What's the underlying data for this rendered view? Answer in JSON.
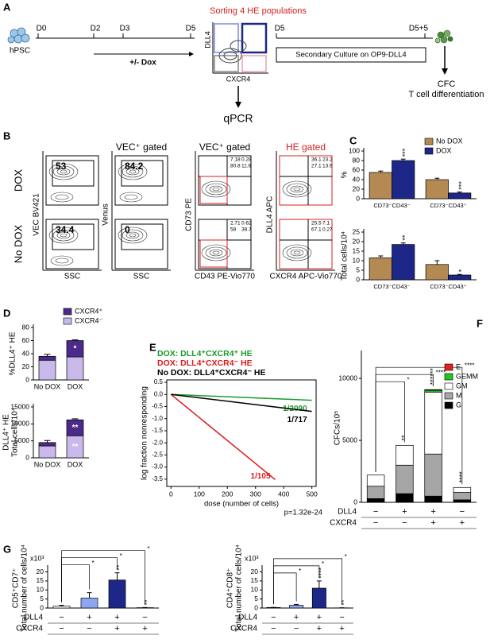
{
  "panel_a": {
    "label": "A",
    "title": "Sorting 4 HE populations",
    "cell": "hPSC",
    "days": [
      "D0",
      "D2",
      "D3",
      "D5"
    ],
    "treatment": "+/- Dox",
    "gate_y": "DLL4",
    "gate_x": "CXCR4",
    "readout": "qPCR",
    "culture_days": [
      "D5",
      "D5+5"
    ],
    "culture": "Secondary Culture on OP9-DLL4",
    "assays": [
      "CFC",
      "T cell differentiation"
    ]
  },
  "panel_b": {
    "label": "B",
    "rows": [
      "DOX",
      "No DOX"
    ],
    "headers": [
      "VEC⁺ gated",
      "VEC⁺ gated",
      "HE gated"
    ],
    "x_labels": [
      "SSC",
      "SSC",
      "CD43 PE-Vio770",
      "CXCR4 APC-Vio770"
    ],
    "y_labels": [
      "VEC BV421",
      "Venus",
      "CD73 PE",
      "DLL4 APC"
    ],
    "gate_values": [
      [
        53,
        84.2
      ],
      [
        34.4,
        0
      ]
    ],
    "quadrants": [
      [
        [
          7.18,
          0.28,
          80.8,
          11.6
        ],
        [
          36.1,
          23.2,
          27.1,
          13.6
        ]
      ],
      [
        [
          2.71,
          0.62,
          58,
          38.7
        ],
        [
          25.5,
          7.1,
          67.1,
          0.27
        ]
      ]
    ]
  },
  "chart_data": [
    {
      "panel": "C",
      "type": "bar",
      "categories": [
        "CD73⁻CD43⁻",
        "CD73⁻CD43⁺"
      ],
      "ylabel": [
        "%"
      ],
      "ylim": [
        0,
        100
      ],
      "yticks": [
        0,
        20,
        40,
        60,
        80,
        100
      ],
      "legend": true,
      "series": [
        {
          "name": "No DOX",
          "color": "#b58a52",
          "values": [
            55,
            40
          ],
          "errors": [
            3,
            3
          ]
        },
        {
          "name": "DOX",
          "color": "#1c2787",
          "values": [
            80,
            12
          ],
          "errors": [
            3,
            2
          ],
          "stars": [
            "***",
            "***"
          ]
        }
      ]
    },
    {
      "type": "bar",
      "categories": [
        "CD73⁻CD43⁻",
        "CD73⁻CD43⁺"
      ],
      "ylabel": [
        "Total cells/10⁴"
      ],
      "ylim": [
        0,
        25
      ],
      "yticks": [
        0,
        5,
        10,
        15,
        20,
        25
      ],
      "series": [
        {
          "color": "#b58a52",
          "values": [
            11.5,
            8
          ],
          "errors": [
            1,
            2
          ]
        },
        {
          "color": "#1c2787",
          "values": [
            18.5,
            2.5
          ],
          "errors": [
            0.8,
            0.3
          ],
          "stars": [
            "**",
            "*"
          ]
        }
      ]
    },
    {
      "panel": "D",
      "type": "stacked_bar",
      "categories": [
        "No DOX",
        "DOX"
      ],
      "ylabel": [
        "%DLL4⁺ HE"
      ],
      "ylim": [
        0,
        80
      ],
      "yticks": [
        0,
        20,
        40,
        60,
        80
      ],
      "legend": true,
      "series": [
        {
          "name": "CXCR4⁻",
          "color": "#c9b8ea",
          "values": [
            30,
            35
          ],
          "errors": [
            4,
            1
          ]
        },
        {
          "name": "CXCR4⁺",
          "color": "#4b2a8c",
          "values": [
            6,
            25
          ],
          "errors": [
            3,
            1
          ],
          "stars": [
            null,
            "*"
          ]
        }
      ]
    },
    {
      "type": "stacked_bar",
      "categories": [
        "No DOX",
        "DOX"
      ],
      "ylabel": [
        "DLL4⁺ HE",
        "Total cells/10⁴"
      ],
      "ylim": [
        0,
        15000
      ],
      "yticks": [
        0,
        5000,
        10000,
        15000
      ],
      "series": [
        {
          "color": "#c9b8ea",
          "values": [
            3500,
            6500
          ],
          "stars": [
            null,
            "**"
          ]
        },
        {
          "color": "#4b2a8c",
          "values": [
            1000,
            4700
          ],
          "errors": [
            600,
            300
          ],
          "stars": [
            null,
            "**"
          ]
        }
      ]
    },
    {
      "panel": "E",
      "type": "line",
      "xlabel": "dose (number of cells)",
      "ylabel": [
        "log fraction nonresponding"
      ],
      "annotation": "p=1.32e-24",
      "xlim": [
        -15,
        515
      ],
      "xticks": [
        0,
        100,
        200,
        300,
        400,
        500
      ],
      "ylim": [
        -3.8,
        0.6
      ],
      "yticks": [
        -3.5,
        {
          "value": -3,
          "label": "-3.0"
        },
        -2.5,
        {
          "value": -2,
          "label": "-2.0"
        },
        -1.5,
        {
          "value": -1,
          "label": "-1.0"
        },
        -0.5,
        {
          "value": 0,
          "label": "0.0"
        },
        0.5
      ],
      "series": [
        {
          "name": "DOX: DLL4⁺CXCR4⁺ HE",
          "color": "#1a9a2a",
          "x": [
            0,
            500
          ],
          "values": [
            0,
            -0.24
          ],
          "estimate": "1/2090"
        },
        {
          "name": "DOX: DLL4⁺CXCR4⁻ HE",
          "color": "#e0191b",
          "x": [
            0,
            370
          ],
          "values": [
            0,
            -3.52
          ],
          "estimate": "1/105"
        },
        {
          "name": "No DOX: DLL4⁺CXCR4⁻ HE",
          "color": "#000000",
          "x": [
            0,
            500
          ],
          "values": [
            0,
            -0.7
          ],
          "estimate": "1/717"
        }
      ]
    },
    {
      "panel": "F",
      "type": "stacked_bar",
      "ylabel": [
        "CFCs/10⁵"
      ],
      "ylim": [
        0,
        12000
      ],
      "yticks": [
        0,
        5000,
        10000
      ],
      "legend": true,
      "conditions": [
        {
          "name": "DLL4",
          "values": [
            "−",
            "+",
            "+",
            "−"
          ]
        },
        {
          "name": "CXCR4",
          "values": [
            "−",
            "−",
            "+",
            "+"
          ]
        }
      ],
      "series": [
        {
          "name": "G",
          "color": "#000000",
          "values": [
            300,
            700,
            500,
            200
          ]
        },
        {
          "name": "M",
          "color": "#a6a6a6",
          "values": [
            1000,
            2300,
            3400,
            600
          ]
        },
        {
          "name": "GM",
          "color": "#ffffff",
          "values": [
            900,
            1600,
            5000,
            400
          ]
        },
        {
          "name": "GEMM",
          "color": "#22c422",
          "values": [
            0,
            0,
            150,
            0
          ]
        },
        {
          "name": "E",
          "color": "#e8201c",
          "values": [
            0,
            0,
            50,
            0
          ]
        }
      ],
      "bar_stars": [
        null,
        "**",
        "******",
        "****"
      ],
      "brackets": [
        "*",
        "****",
        "****"
      ]
    },
    {
      "panel": "G",
      "type": "bar",
      "ylabel": [
        "CD5⁺CD7⁺",
        "Total number of cells/10⁴"
      ],
      "multiplier": "x10³",
      "ylim": [
        0,
        22
      ],
      "yticks": [
        0,
        5,
        10,
        15,
        20
      ],
      "conditions": [
        {
          "name": "DLL4",
          "values": [
            "−",
            "+",
            "+",
            "−"
          ]
        },
        {
          "name": "CXCR4",
          "values": [
            "−",
            "−",
            "+",
            "+"
          ]
        }
      ],
      "series": [
        {
          "colors": [
            "#ffffff",
            "#8ea5f0",
            "#1c2787",
            "#ffffff"
          ],
          "values": [
            1,
            5.5,
            15.5,
            0.2
          ],
          "errors": [
            0.5,
            3,
            4,
            0.1
          ],
          "stars": [
            null,
            null,
            "**",
            "**"
          ]
        }
      ],
      "brackets": [
        "*",
        "*",
        "*"
      ]
    },
    {
      "type": "bar",
      "ylabel": [
        "CD4⁺CD8⁺",
        "Total number of cells/10⁴"
      ],
      "multiplier": "x10³",
      "ylim": [
        0,
        22
      ],
      "yticks": [
        0,
        5,
        10,
        15,
        20
      ],
      "conditions": [
        {
          "name": "DLL4",
          "values": [
            "−",
            "+",
            "+",
            "−"
          ]
        },
        {
          "name": "CXCR4",
          "values": [
            "−",
            "−",
            "+",
            "+"
          ]
        }
      ],
      "series": [
        {
          "colors": [
            "#ffffff",
            "#8ea5f0",
            "#1c2787",
            "#ffffff"
          ],
          "values": [
            0.3,
            1.5,
            11,
            0.1
          ],
          "errors": [
            0.1,
            0.5,
            4,
            0.05
          ],
          "stars": [
            null,
            null,
            "****",
            "**"
          ]
        }
      ],
      "brackets": [
        "*",
        "*",
        "*"
      ]
    }
  ]
}
